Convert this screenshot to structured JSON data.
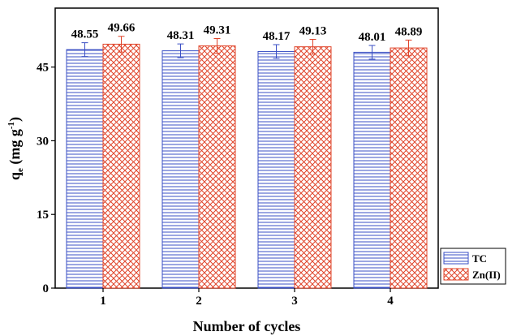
{
  "chart_data": {
    "type": "bar",
    "title": "",
    "xlabel": "Number of cycles",
    "ylabel_main": "q",
    "ylabel_sub": "e",
    "ylabel_unit": " (mg g",
    "ylabel_sup": "-1",
    "ylabel_close": ")",
    "ylim": [
      0,
      57
    ],
    "yticks": [
      0,
      15,
      30,
      45
    ],
    "categories": [
      "1",
      "2",
      "3",
      "4"
    ],
    "series": [
      {
        "name": "TC",
        "values": [
          48.55,
          48.31,
          48.17,
          48.01
        ],
        "labels": [
          "48.55",
          "48.31",
          "48.17",
          "48.01"
        ],
        "errors": [
          1.4,
          1.4,
          1.4,
          1.4
        ],
        "color": "#3a4fc4",
        "pattern": "horizontal-lines"
      },
      {
        "name": "Zn(II)",
        "values": [
          49.66,
          49.31,
          49.13,
          48.89
        ],
        "labels": [
          "49.66",
          "49.31",
          "49.13",
          "48.89"
        ],
        "errors": [
          1.6,
          1.5,
          1.5,
          1.6
        ],
        "color": "#e0442a",
        "pattern": "crosshatch"
      }
    ],
    "grid": false,
    "legend_position": "bottom-right-outside"
  }
}
